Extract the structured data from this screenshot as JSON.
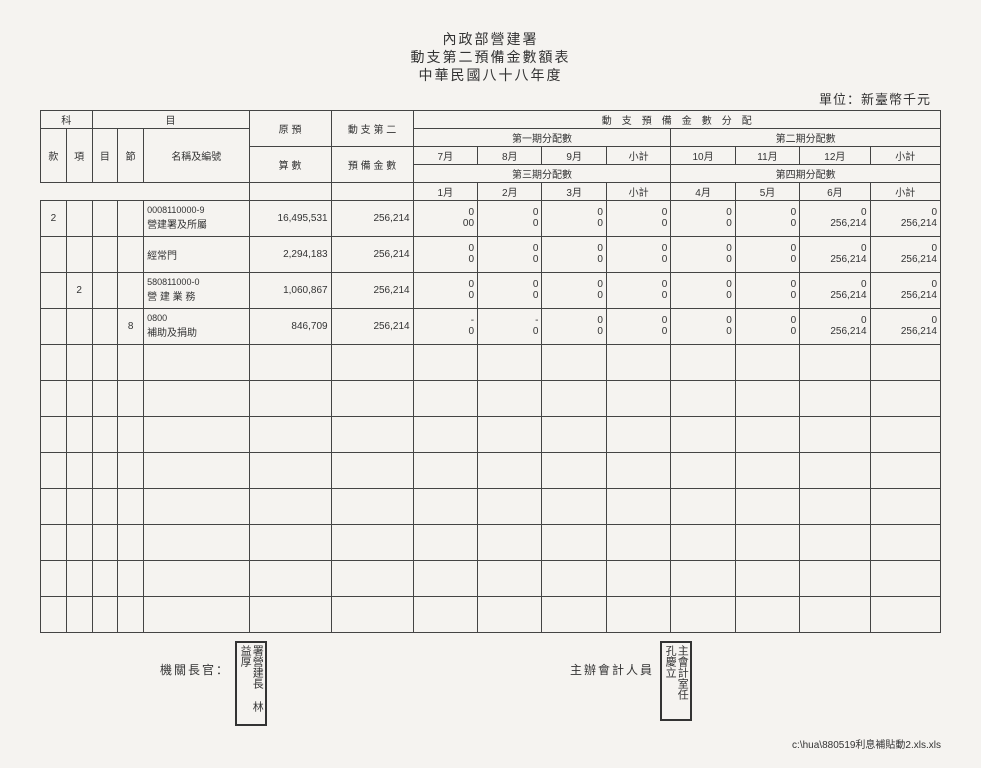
{
  "header": {
    "org": "內政部營建署",
    "title": "動支第二預備金數額表",
    "year": "中華民國八十八年度"
  },
  "unit_label": "單位：新臺幣千元",
  "colheaders": {
    "section": "科",
    "item": "目",
    "kuan": "款",
    "xiang": "項",
    "mu": "目",
    "jie": "節",
    "name": "名稱及編號",
    "orig_budget": "原 預",
    "orig_budget2": "算 數",
    "reserve": "動 支 第 二",
    "reserve2": "預 備 金 數",
    "alloc_main": "動　支　預　備　金　數　分　配",
    "q1": "第一期分配數",
    "q2": "第二期分配數",
    "q3": "第三期分配數",
    "q4": "第四期分配數",
    "m7": "7月",
    "m8": "8月",
    "m9": "9月",
    "m10": "10月",
    "m11": "11月",
    "m12": "12月",
    "m1": "1月",
    "m2": "2月",
    "m3": "3月",
    "m4": "4月",
    "m5": "5月",
    "m6": "6月",
    "sub": "小計"
  },
  "rows": [
    {
      "kuan": "2",
      "xiang": "",
      "mu": "",
      "jie": "",
      "name1": "0008110000-9",
      "name2": "營建署及所屬",
      "budget": "16,495,531",
      "reserve": "256,214",
      "r1": [
        "0",
        "0",
        "0",
        "0",
        "0",
        "0",
        "0",
        "0"
      ],
      "r2": [
        "00",
        "0",
        "0",
        "0",
        "0",
        "0",
        "256,214",
        "256,214"
      ]
    },
    {
      "kuan": "",
      "xiang": "",
      "mu": "",
      "jie": "",
      "name1": "經常門",
      "name2": "",
      "budget": "2,294,183",
      "reserve": "256,214",
      "r1": [
        "0",
        "0",
        "0",
        "0",
        "0",
        "0",
        "0",
        "0"
      ],
      "r2": [
        "0",
        "0",
        "0",
        "0",
        "0",
        "0",
        "256,214",
        "256,214"
      ]
    },
    {
      "kuan": "",
      "xiang": "2",
      "mu": "",
      "jie": "",
      "name1": "580811000-0",
      "name2": "營 建 業 務",
      "budget": "1,060,867",
      "reserve": "256,214",
      "r1": [
        "0",
        "0",
        "0",
        "0",
        "0",
        "0",
        "0",
        "0"
      ],
      "r2": [
        "0",
        "0",
        "0",
        "0",
        "0",
        "0",
        "256,214",
        "256,214"
      ]
    },
    {
      "kuan": "",
      "xiang": "",
      "mu": "",
      "jie": "8",
      "name1": "0800",
      "name2": "補助及捐助",
      "budget": "846,709",
      "reserve": "256,214",
      "r1": [
        "-",
        "-",
        "0",
        "0",
        "0",
        "0",
        "0",
        "0"
      ],
      "r2": [
        "0",
        "0",
        "0",
        "0",
        "0",
        "0",
        "256,214",
        "256,214"
      ]
    }
  ],
  "empty_rows": 8,
  "footer": {
    "left_label": "機關長官：",
    "mid_label": "主辦會計人員",
    "stamp1": "署營建長 林益厚",
    "stamp2": "主會計室任 孔慶立",
    "filepath": "c:\\hua\\880519利息補貼動2.xls.xls"
  }
}
